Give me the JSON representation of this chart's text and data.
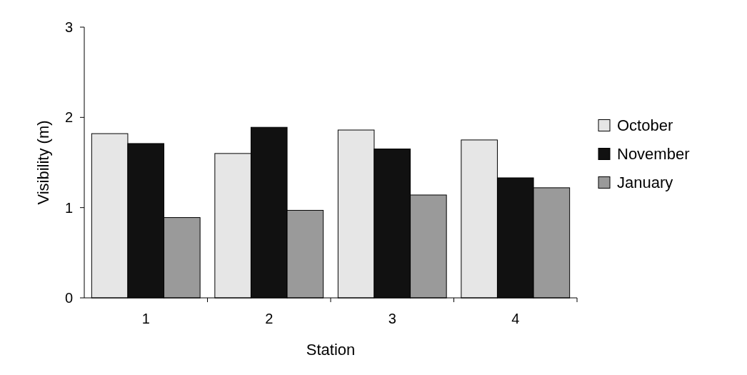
{
  "chart_data": {
    "type": "bar",
    "xlabel": "Station",
    "ylabel": "Visibility (m)",
    "categories": [
      "1",
      "2",
      "3",
      "4"
    ],
    "series": [
      {
        "name": "October",
        "color": "#e6e6e6",
        "values": [
          1.82,
          1.6,
          1.86,
          1.75
        ]
      },
      {
        "name": "November",
        "color": "#111111",
        "values": [
          1.71,
          1.89,
          1.65,
          1.33
        ]
      },
      {
        "name": "January",
        "color": "#9a9a9a",
        "values": [
          0.89,
          0.97,
          1.14,
          1.22
        ]
      }
    ],
    "ylim": [
      0,
      3
    ],
    "yticks": [
      0,
      1,
      2,
      3
    ],
    "legend": "right"
  }
}
